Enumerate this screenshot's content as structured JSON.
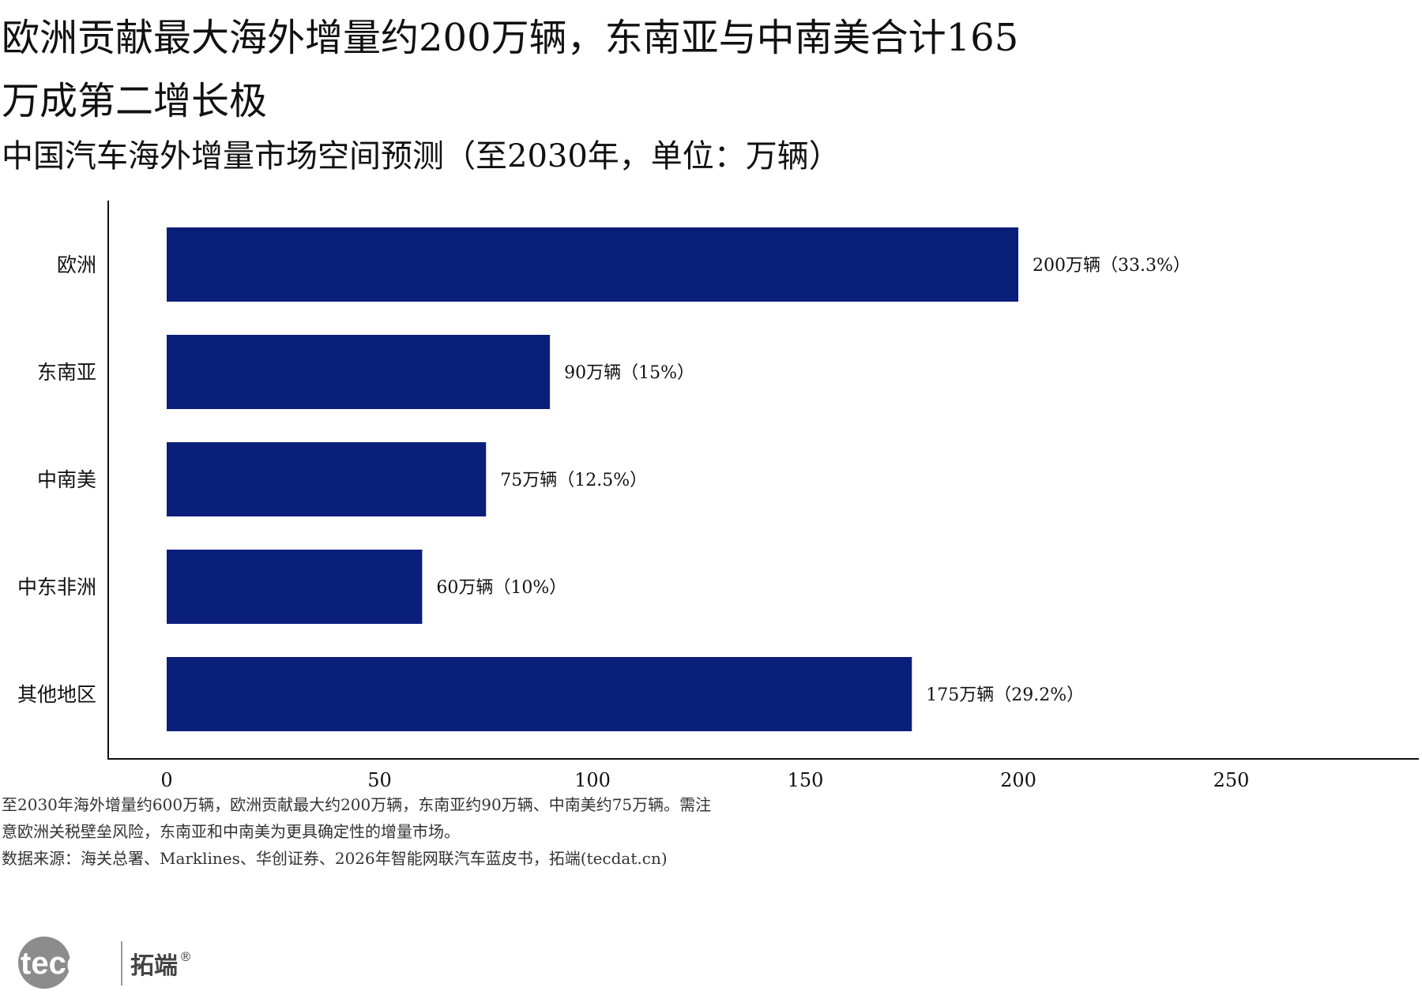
{
  "header": {
    "title": "欧洲贡献最大海外增量约200万辆，东南亚与中南美合计165万成第二增长极",
    "subtitle": "中国汽车海外增量市场空间预测（至2030年，单位：万辆）"
  },
  "chart_data": {
    "type": "bar",
    "orientation": "horizontal",
    "categories": [
      "欧洲",
      "东南亚",
      "中南美",
      "中东非洲",
      "其他地区"
    ],
    "values": [
      200,
      90,
      75,
      60,
      175
    ],
    "data_labels": [
      "200万辆（33.3%）",
      "90万辆（15%）",
      "75万辆（12.5%）",
      "60万辆（10%）",
      "175万辆（29.2%）"
    ],
    "xlim": [
      0,
      300
    ],
    "xticks": [
      0,
      50,
      100,
      150,
      200,
      250
    ],
    "grid": false,
    "bar_color": "#0a1f7a",
    "axis_color": "#111111"
  },
  "footer": {
    "note": "至2030年海外增量约600万辆，欧洲贡献最大约200万辆，东南亚约90万辆、中南美约75万辆。需注意欧洲关税壁垒风险，东南亚和中南美为更具确定性的增量市场。",
    "source": "数据来源：海关总署、Marklines、华创证券、2026年智能网联汽车蓝皮书，拓端(tecdat.cn)"
  },
  "logo": {
    "brand_en": "tecdat",
    "brand_cn": "拓端",
    "registered_mark": "®",
    "circle_color": "#8c8c8c",
    "text_color": "#444444"
  }
}
